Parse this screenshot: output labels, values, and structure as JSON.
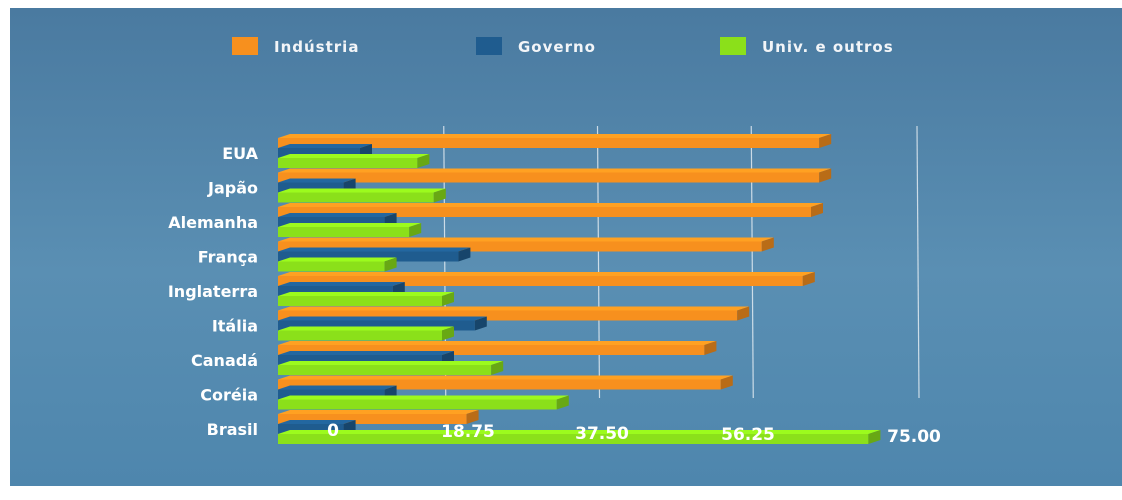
{
  "chart_data": {
    "type": "bar",
    "orientation": "horizontal",
    "style": "3d",
    "categories": [
      "EUA",
      "Japão",
      "Alemanha",
      "França",
      "Inglaterra",
      "Itália",
      "Canadá",
      "Coréia",
      "Brasil"
    ],
    "series": [
      {
        "name": "Indústria",
        "color": "#f7901e",
        "values": [
          66,
          66,
          65,
          59,
          64,
          56,
          52,
          54,
          23
        ]
      },
      {
        "name": "Governo",
        "color": "#1f5c8f",
        "values": [
          10,
          8,
          13,
          22,
          14,
          24,
          20,
          13,
          8
        ]
      },
      {
        "name": "Univ. e outros",
        "color": "#8be01a",
        "values": [
          17,
          19,
          16,
          13,
          20,
          20,
          26,
          34,
          72
        ]
      }
    ],
    "x_ticks": [
      "0",
      "18.75",
      "37.50",
      "56.25",
      "75.00"
    ],
    "xlim": [
      0,
      75
    ],
    "grid": true,
    "legend_position": "top"
  }
}
